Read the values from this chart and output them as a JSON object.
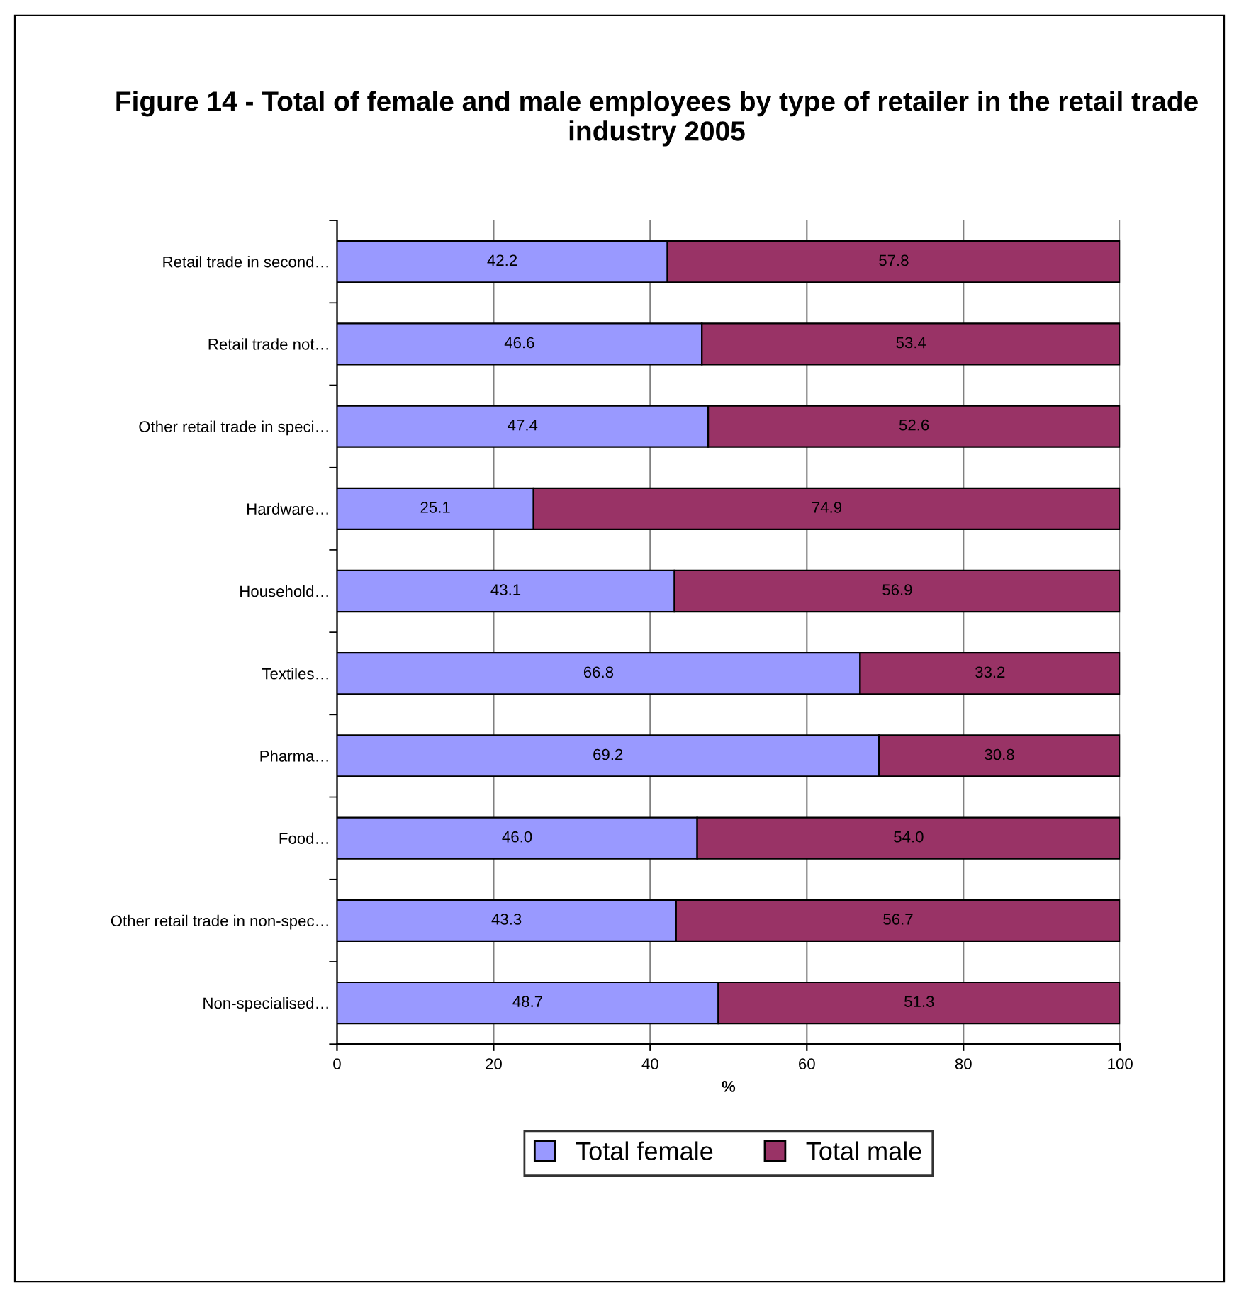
{
  "chart_data": {
    "type": "bar",
    "orientation": "horizontal",
    "stacked": true,
    "title": "Figure 14 - Total of female and male employees by type of retailer in the retail trade industry 2005",
    "xlabel": "%",
    "categories": [
      "Retail trade in second…",
      "Retail trade not…",
      "Other retail trade in speci…",
      "Hardware…",
      "Household…",
      "Textiles…",
      "Pharma…",
      "Food…",
      "Other retail trade in non-spec…",
      "Non-specialised…"
    ],
    "series": [
      {
        "name": "Total female",
        "color": "#9999ff",
        "values": [
          42.2,
          46.6,
          47.4,
          25.1,
          43.1,
          66.8,
          69.2,
          46.0,
          43.3,
          48.7
        ],
        "value_labels": [
          "42.2",
          "46.6",
          "47.4",
          "25.1",
          "43.1",
          "66.8",
          "69.2",
          "46.0",
          "43.3",
          "48.7"
        ]
      },
      {
        "name": "Total male",
        "color": "#993366",
        "values": [
          57.8,
          53.4,
          52.6,
          74.9,
          56.9,
          33.2,
          30.8,
          54.0,
          56.7,
          51.3
        ],
        "value_labels": [
          "57.8",
          "53.4",
          "52.6",
          "74.9",
          "56.9",
          "33.2",
          "30.8",
          "54.0",
          "56.7",
          "51.3"
        ]
      }
    ],
    "xlim": [
      0,
      100
    ],
    "xticks": [
      0,
      20,
      40,
      60,
      80,
      100
    ],
    "grid": "x",
    "legend": "bottom"
  }
}
